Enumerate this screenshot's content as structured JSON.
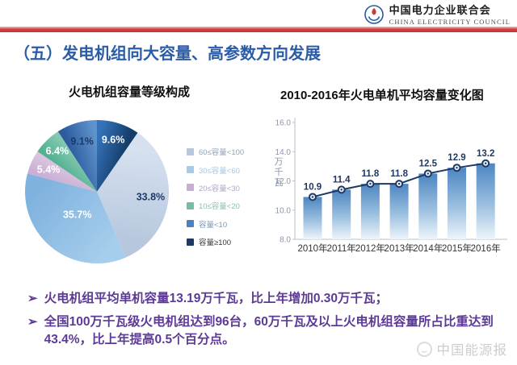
{
  "header": {
    "org_cn": "中国电力企业联合会",
    "org_en": "CHINA ELECTRICITY COUNCIL",
    "slide_title": "（五）发电机组向大容量、高参数方向发展"
  },
  "colors": {
    "accent_blue": "#2b5ca8",
    "divider_red": "#c83a3a",
    "bullet_purple": "#5c3a96",
    "line_navy": "#1f3864",
    "bar_top": "#4c86c2",
    "bar_bottom": "#eef5fb",
    "axis_gray": "#b9c2cc"
  },
  "chart_data": [
    {
      "type": "pie",
      "title": "火电机组容量等级构成",
      "slices": [
        {
          "label": "容量≥100",
          "pct": 9.6,
          "color_start": "#3473ba",
          "color_end": "#153c68",
          "label_color": "#ffffff",
          "label_frac": 0.76
        },
        {
          "label": "60≤容量<100",
          "pct": 33.8,
          "color_start": "#d6e0ef",
          "color_end": "#b7c8de",
          "label_color": "#1f3864",
          "label_frac": 0.75
        },
        {
          "label": "30≤容量<60",
          "pct": 35.7,
          "color_start": "#a5cdec",
          "color_end": "#7fb2de",
          "label_color": "#ffffff",
          "label_frac": 0.42
        },
        {
          "label": "20≤容量<30",
          "pct": 5.4,
          "color_start": "#caaed4",
          "color_end": "#d9c4e0",
          "label_color": "#ffffff",
          "label_frac": 0.74
        },
        {
          "label": "10≤容量<20",
          "pct": 6.4,
          "color_start": "#53b093",
          "color_end": "#82c9af",
          "label_color": "#ffffff",
          "label_frac": 0.79
        },
        {
          "label": "容量<10",
          "pct": 9.1,
          "color_start": "#2d5c9e",
          "color_end": "#5e93cc",
          "label_color": "#1a3a66",
          "label_frac": 0.73
        }
      ],
      "legend": [
        {
          "label": "60≤容量<100",
          "color": "#b6c7de",
          "text_color": "#8fa3bd"
        },
        {
          "label": "30≤容量<60",
          "color": "#a5cbe9",
          "text_color": "#a9c6e0"
        },
        {
          "label": "20≤容量<30",
          "color": "#c5afd2",
          "text_color": "#b2a5c3"
        },
        {
          "label": "10≤容量<20",
          "color": "#6fc0a5",
          "text_color": "#8cbfad"
        },
        {
          "label": "容量<10",
          "color": "#4d80c0",
          "text_color": "#7e96b8"
        },
        {
          "label": "容量≥100",
          "color": "#1b3a66",
          "text_color": "#33383f"
        }
      ],
      "legend_position": "right"
    },
    {
      "type": "bar+line",
      "title": "2010-2016年火电单机平均容量变化图",
      "categories": [
        "2010年",
        "2011年",
        "2012年",
        "2013年",
        "2014年",
        "2015年",
        "2016年"
      ],
      "values": [
        10.9,
        11.4,
        11.8,
        11.8,
        12.5,
        12.9,
        13.2
      ],
      "ylabel": "万千瓦",
      "ylim": [
        8.0,
        16.0
      ],
      "yticks": [
        8.0,
        10.0,
        12.0,
        14.0,
        16.0
      ],
      "grid": false,
      "data_labels": true
    }
  ],
  "bullets": [
    {
      "arrow": "➢",
      "text": "火电机组平均单机容量13.19万千瓦，比上年增加0.30万千瓦；"
    },
    {
      "arrow": "➢",
      "text": "全国100万千瓦级火电机组达到96台，60万千瓦及以上火电机组容量所占比重达到43.4%，比上年提高0.5个百分点。"
    }
  ],
  "watermark": {
    "label": "中国能源报"
  }
}
